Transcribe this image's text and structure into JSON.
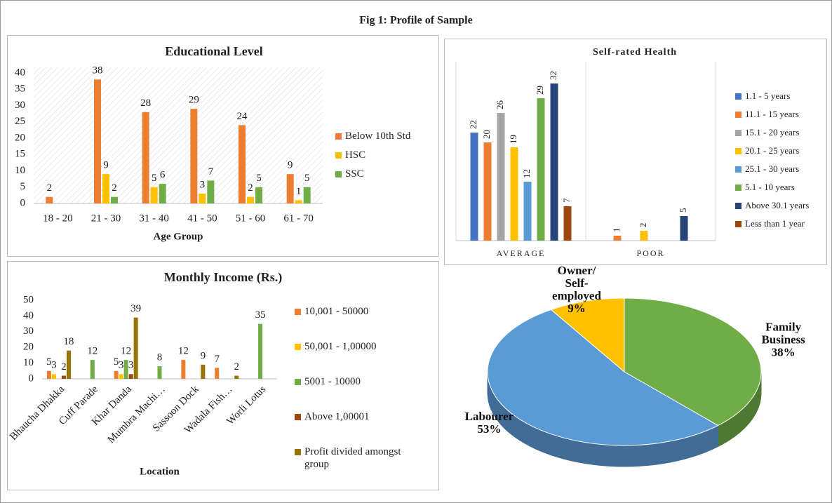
{
  "title": "Fig 1: Profile of Sample",
  "chart_data": [
    {
      "type": "bar",
      "title": "Educational Level",
      "x_label": "Age Group",
      "categories": [
        "18 - 20",
        "21 - 30",
        "31 - 40",
        "41 - 50",
        "51 - 60",
        "61 - 70"
      ],
      "series": [
        {
          "name": "Below 10th Std",
          "color": "#ed7d31",
          "values": [
            2,
            38,
            28,
            29,
            24,
            9
          ]
        },
        {
          "name": "HSC",
          "color": "#ffc000",
          "values": [
            null,
            9,
            5,
            3,
            2,
            1
          ]
        },
        {
          "name": "SSC",
          "color": "#70ad47",
          "values": [
            null,
            2,
            6,
            7,
            5,
            5
          ]
        }
      ],
      "ylim": [
        0,
        40
      ],
      "yticks": [
        0,
        5,
        10,
        15,
        20,
        25,
        30,
        35,
        40
      ],
      "legend": "right"
    },
    {
      "type": "bar",
      "title": "Self-rated Health",
      "categories": [
        "AVERAGE",
        "POOR"
      ],
      "series": [
        {
          "name": "1.1 - 5 years",
          "color": "#4472c4",
          "values": [
            22,
            null
          ]
        },
        {
          "name": "11.1 - 15 years",
          "color": "#ed7d31",
          "values": [
            20,
            1
          ]
        },
        {
          "name": "15.1 - 20 years",
          "color": "#a5a5a5",
          "values": [
            26,
            null
          ]
        },
        {
          "name": "20.1 - 25 years",
          "color": "#ffc000",
          "values": [
            19,
            2
          ]
        },
        {
          "name": "25.1 - 30 years",
          "color": "#5b9bd5",
          "values": [
            12,
            null
          ]
        },
        {
          "name": "5.1 - 10 years",
          "color": "#70ad47",
          "values": [
            29,
            null
          ]
        },
        {
          "name": "Above 30.1 years",
          "color": "#264478",
          "values": [
            32,
            5
          ]
        },
        {
          "name": "Less than 1 year",
          "color": "#9e480e",
          "values": [
            7,
            null
          ]
        }
      ],
      "ylim": [
        0,
        35
      ],
      "legend": "right"
    },
    {
      "type": "bar",
      "title": "Monthly Income (Rs.)",
      "x_label": "Location",
      "categories": [
        "Bhaucha Dhakka",
        "Cuff Parade",
        "Khar Danda",
        "Mumbra Machi…",
        "Sassoon Dock",
        "Wadala Fish…",
        "Worli Lotus"
      ],
      "series": [
        {
          "name": "10,001 - 50000",
          "color": "#ed7d31",
          "values": [
            5,
            null,
            5,
            null,
            12,
            7,
            null
          ]
        },
        {
          "name": "50,001 - 1,00000",
          "color": "#ffc000",
          "values": [
            3,
            null,
            3,
            null,
            null,
            null,
            null
          ]
        },
        {
          "name": "5001 - 10000",
          "color": "#70ad47",
          "values": [
            null,
            12,
            12,
            8,
            null,
            null,
            35
          ]
        },
        {
          "name": "Above 1,00001",
          "color": "#9e480e",
          "values": [
            2,
            null,
            3,
            null,
            null,
            null,
            null
          ]
        },
        {
          "name": "Profit divided amongst group",
          "color": "#997300",
          "values": [
            18,
            null,
            39,
            null,
            9,
            2,
            null
          ]
        }
      ],
      "ylim": [
        0,
        50
      ],
      "yticks": [
        0,
        10,
        20,
        30,
        40,
        50
      ],
      "legend": "right"
    },
    {
      "type": "pie",
      "categories": [
        "Family Business",
        "Labourer",
        "Owner/ Self-employed"
      ],
      "values": [
        38,
        53,
        9
      ],
      "value_labels": [
        "38%",
        "53%",
        "9%"
      ],
      "colors": [
        "#70ad47",
        "#5b9bd5",
        "#ffc000"
      ]
    }
  ]
}
